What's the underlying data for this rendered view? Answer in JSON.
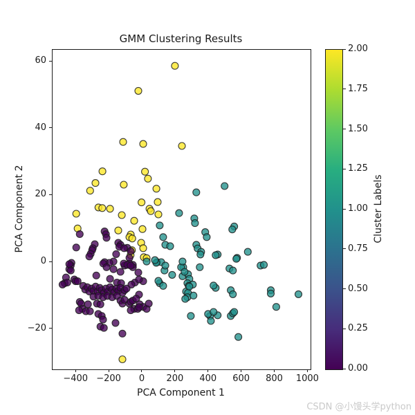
{
  "figure": {
    "watermark": "CSDN @小馒头学python"
  },
  "chart_data": {
    "type": "scatter",
    "title": "GMM Clustering Results",
    "xlabel": "PCA Component 1",
    "ylabel": "PCA Component 2",
    "xlim": [
      -543,
      1015
    ],
    "ylim": [
      -32.1,
      63.6
    ],
    "grid": false,
    "x_ticks": [
      {
        "v": -400,
        "label": "−400"
      },
      {
        "v": -200,
        "label": "−200"
      },
      {
        "v": 0,
        "label": "0"
      },
      {
        "v": 200,
        "label": "200"
      },
      {
        "v": 400,
        "label": "400"
      },
      {
        "v": 600,
        "label": "600"
      },
      {
        "v": 800,
        "label": "800"
      },
      {
        "v": 1000,
        "label": "1000"
      }
    ],
    "y_ticks": [
      {
        "v": -20,
        "label": "−20"
      },
      {
        "v": 0,
        "label": "0"
      },
      {
        "v": 20,
        "label": "20"
      },
      {
        "v": 40,
        "label": "40"
      },
      {
        "v": 60,
        "label": "60"
      }
    ],
    "colorbar": {
      "label": "Cluster Labels",
      "vmin": 0,
      "vmax": 2,
      "colormap": "viridis",
      "gradient_stops": [
        "#440154",
        "#472d7b",
        "#3b528b",
        "#2c728e",
        "#21918c",
        "#28ae80",
        "#5ec962",
        "#addc30",
        "#fde725"
      ],
      "ticks": [
        {
          "v": 0.0,
          "label": "0.00"
        },
        {
          "v": 0.25,
          "label": "0.25"
        },
        {
          "v": 0.5,
          "label": "0.50"
        },
        {
          "v": 0.75,
          "label": "0.75"
        },
        {
          "v": 1.0,
          "label": "1.00"
        },
        {
          "v": 1.25,
          "label": "1.25"
        },
        {
          "v": 1.5,
          "label": "1.50"
        },
        {
          "v": 1.75,
          "label": "1.75"
        },
        {
          "v": 2.0,
          "label": "2.00"
        }
      ]
    },
    "clusters": [
      {
        "id": 0,
        "name": "cluster-0",
        "color": "#440154"
      },
      {
        "id": 1,
        "name": "cluster-1",
        "color": "#21918c"
      },
      {
        "id": 2,
        "name": "cluster-2",
        "color": "#fde725"
      }
    ],
    "marker": {
      "radius_px": 5,
      "alpha": 0.78,
      "edge_color": "#1a1a1a"
    },
    "points": [
      [
        196,
        58.8,
        2
      ],
      [
        -25,
        51.3,
        2
      ],
      [
        -117,
        36.0,
        2
      ],
      [
        4,
        35.4,
        2
      ],
      [
        238,
        34.8,
        2
      ],
      [
        -242,
        27.2,
        2
      ],
      [
        15,
        27.1,
        2
      ],
      [
        33,
        25.0,
        2
      ],
      [
        -284,
        23.7,
        2
      ],
      [
        -113,
        23.2,
        2
      ],
      [
        84,
        22.0,
        2
      ],
      [
        -316,
        21.4,
        2
      ],
      [
        -6,
        17.9,
        2
      ],
      [
        92,
        18.0,
        2
      ],
      [
        -266,
        16.4,
        2
      ],
      [
        -243,
        16.2,
        2
      ],
      [
        -196,
        16.0,
        2
      ],
      [
        42,
        16.0,
        2
      ],
      [
        -400,
        14.5,
        2
      ],
      [
        50,
        15.3,
        2
      ],
      [
        -125,
        14.1,
        2
      ],
      [
        96,
        14.3,
        2
      ],
      [
        -50,
        12.4,
        2
      ],
      [
        -392,
        10.1,
        2
      ],
      [
        0,
        9.9,
        2
      ],
      [
        -146,
        9.5,
        2
      ],
      [
        -71,
        8.3,
        2
      ],
      [
        -79,
        7.5,
        2
      ],
      [
        -62,
        7.1,
        2
      ],
      [
        -8,
        5.8,
        2
      ],
      [
        4,
        4.2,
        2
      ],
      [
        -64,
        3.6,
        2
      ],
      [
        -72,
        2.1,
        2
      ],
      [
        8,
        1.5,
        2
      ],
      [
        25,
        1.2,
        2
      ],
      [
        -121,
        -29.1,
        2
      ],
      [
        496,
        22.8,
        1
      ],
      [
        325,
        20.9,
        1
      ],
      [
        221,
        14.7,
        1
      ],
      [
        313,
        13.1,
        1
      ],
      [
        317,
        11.7,
        1
      ],
      [
        554,
        10.7,
        1
      ],
      [
        542,
        9.8,
        1
      ],
      [
        379,
        9.0,
        1
      ],
      [
        388,
        7.5,
        1
      ],
      [
        104,
        11.0,
        1
      ],
      [
        125,
        7.5,
        1
      ],
      [
        138,
        5.2,
        1
      ],
      [
        167,
        4.8,
        1
      ],
      [
        325,
        5.2,
        1
      ],
      [
        333,
        4.1,
        1
      ],
      [
        354,
        3.1,
        1
      ],
      [
        454,
        2.3,
        1
      ],
      [
        636,
        3.1,
        1
      ],
      [
        571,
        1.3,
        1
      ],
      [
        713,
        -1.0,
        1
      ],
      [
        733,
        -0.8,
        1
      ],
      [
        350,
        2.3,
        1
      ],
      [
        442,
        2.1,
        1
      ],
      [
        567,
        1.0,
        1
      ],
      [
        246,
        -1.5,
        1
      ],
      [
        242,
        -4.2,
        1
      ],
      [
        525,
        -1.9,
        1
      ],
      [
        546,
        -2.5,
        1
      ],
      [
        275,
        -3.6,
        1
      ],
      [
        283,
        -5.0,
        1
      ],
      [
        271,
        -6.3,
        1
      ],
      [
        279,
        -7.1,
        1
      ],
      [
        304,
        -6.7,
        1
      ],
      [
        263,
        -8.8,
        1
      ],
      [
        275,
        -9.2,
        1
      ],
      [
        271,
        -10.5,
        1
      ],
      [
        258,
        -11.0,
        1
      ],
      [
        308,
        -10.0,
        1
      ],
      [
        442,
        -7.7,
        1
      ],
      [
        533,
        -8.4,
        1
      ],
      [
        546,
        -9.6,
        1
      ],
      [
        775,
        -8.4,
        1
      ],
      [
        775,
        -9.4,
        1
      ],
      [
        942,
        -9.6,
        1
      ],
      [
        808,
        -13.4,
        1
      ],
      [
        292,
        -16.1,
        1
      ],
      [
        408,
        -16.1,
        1
      ],
      [
        413,
        -17.6,
        1
      ],
      [
        454,
        -15.9,
        1
      ],
      [
        533,
        -16.1,
        1
      ],
      [
        546,
        -15.3,
        1
      ],
      [
        554,
        -14.9,
        1
      ],
      [
        579,
        -22.4,
        1
      ],
      [
        88,
        0.0,
        1
      ],
      [
        113,
        0.0,
        1
      ],
      [
        25,
        0.2,
        1
      ],
      [
        83,
        -0.2,
        1
      ],
      [
        133,
        -2.5,
        1
      ],
      [
        179,
        -3.8,
        1
      ],
      [
        233,
        -1.5,
        1
      ],
      [
        254,
        -2.9,
        1
      ],
      [
        104,
        -6.3,
        1
      ],
      [
        125,
        -7.1,
        1
      ],
      [
        75,
        0.6,
        1
      ],
      [
        138,
        -1.0,
        1
      ],
      [
        242,
        0.2,
        1
      ],
      [
        346,
        -1.5,
        1
      ],
      [
        96,
        -5.6,
        1
      ],
      [
        283,
        -7.3,
        1
      ],
      [
        429,
        -7.0,
        1
      ],
      [
        396,
        -15.5,
        1
      ],
      [
        429,
        -14.9,
        1
      ],
      [
        -379,
        8.4,
        0
      ],
      [
        -229,
        9.2,
        0
      ],
      [
        -221,
        8.4,
        0
      ],
      [
        -217,
        7.3,
        0
      ],
      [
        -146,
        5.8,
        0
      ],
      [
        -133,
        5.2,
        0
      ],
      [
        -92,
        4.3,
        0
      ],
      [
        -71,
        3.3,
        0
      ],
      [
        -140,
        4.6,
        0
      ],
      [
        -111,
        4.2,
        0
      ],
      [
        -400,
        4.4,
        0
      ],
      [
        -288,
        5.4,
        0
      ],
      [
        -300,
        4.2,
        0
      ],
      [
        -304,
        3.6,
        0
      ],
      [
        -313,
        2.5,
        0
      ],
      [
        -321,
        1.7,
        0
      ],
      [
        -159,
        2.4,
        0
      ],
      [
        -175,
        0.2,
        0
      ],
      [
        -200,
        -0.2,
        0
      ],
      [
        -229,
        0.0,
        0
      ],
      [
        -237,
        -0.4,
        0
      ],
      [
        -79,
        1.3,
        0
      ],
      [
        -58,
        -0.8,
        0
      ],
      [
        -429,
        -0.2,
        0
      ],
      [
        -433,
        -1.0,
        0
      ],
      [
        -442,
        -2.1,
        0
      ],
      [
        -442,
        -0.6,
        0
      ],
      [
        -217,
        -1.5,
        0
      ],
      [
        -175,
        -2.1,
        0
      ],
      [
        -133,
        -2.9,
        0
      ],
      [
        -108,
        -1.0,
        0
      ],
      [
        -79,
        -0.4,
        0
      ],
      [
        -58,
        -1.5,
        0
      ],
      [
        -113,
        -0.4,
        0
      ],
      [
        -92,
        -0.8,
        0
      ],
      [
        -71,
        -1.0,
        0
      ],
      [
        -462,
        -4.6,
        0
      ],
      [
        -470,
        -6.3,
        0
      ],
      [
        -454,
        -6.1,
        0
      ],
      [
        -412,
        -5.2,
        0
      ],
      [
        -404,
        -5.7,
        0
      ],
      [
        -483,
        -6.7,
        0
      ],
      [
        -433,
        -2.5,
        0
      ],
      [
        -392,
        -5.7,
        0
      ],
      [
        -279,
        -4.0,
        0
      ],
      [
        -196,
        -5.0,
        0
      ],
      [
        -154,
        -6.1,
        0
      ],
      [
        -129,
        -6.3,
        0
      ],
      [
        -25,
        -3.1,
        0
      ],
      [
        4,
        -5.7,
        0
      ],
      [
        -46,
        -6.1,
        0
      ],
      [
        -67,
        -6.7,
        0
      ],
      [
        -21,
        -5.2,
        0
      ],
      [
        -358,
        -7.1,
        0
      ],
      [
        -346,
        -8.2,
        0
      ],
      [
        -333,
        -7.5,
        0
      ],
      [
        -321,
        -8.8,
        0
      ],
      [
        -308,
        -7.9,
        0
      ],
      [
        -296,
        -8.6,
        0
      ],
      [
        -283,
        -7.3,
        0
      ],
      [
        -271,
        -8.8,
        0
      ],
      [
        -258,
        -7.7,
        0
      ],
      [
        -246,
        -8.4,
        0
      ],
      [
        -233,
        -9.2,
        0
      ],
      [
        -221,
        -7.9,
        0
      ],
      [
        -208,
        -8.8,
        0
      ],
      [
        -196,
        -7.5,
        0
      ],
      [
        -183,
        -8.2,
        0
      ],
      [
        -171,
        -9.0,
        0
      ],
      [
        -158,
        -7.9,
        0
      ],
      [
        -146,
        -8.6,
        0
      ],
      [
        -133,
        -7.7,
        0
      ],
      [
        -121,
        -9.2,
        0
      ],
      [
        -108,
        -8.4,
        0
      ],
      [
        -96,
        -7.9,
        0
      ],
      [
        -296,
        -10.3,
        0
      ],
      [
        -267,
        -10.1,
        0
      ],
      [
        -238,
        -10.5,
        0
      ],
      [
        -212,
        -10.1,
        0
      ],
      [
        -183,
        -10.5,
        0
      ],
      [
        -154,
        -10.1,
        0
      ],
      [
        -21,
        -9.7,
        0
      ],
      [
        -379,
        -11.9,
        0
      ],
      [
        -371,
        -12.4,
        0
      ],
      [
        -363,
        -14.0,
        0
      ],
      [
        -383,
        -14.4,
        0
      ],
      [
        -342,
        -14.7,
        0
      ],
      [
        -329,
        -12.6,
        0
      ],
      [
        -317,
        -14.7,
        0
      ],
      [
        -275,
        -12.4,
        0
      ],
      [
        -254,
        -12.6,
        0
      ],
      [
        -133,
        -11.5,
        0
      ],
      [
        -121,
        -12.4,
        0
      ],
      [
        -108,
        -11.3,
        0
      ],
      [
        -79,
        -12.4,
        0
      ],
      [
        -71,
        -11.9,
        0
      ],
      [
        -58,
        -11.5,
        0
      ],
      [
        -50,
        -14.0,
        0
      ],
      [
        -38,
        -10.9,
        0
      ],
      [
        -29,
        -14.0,
        0
      ],
      [
        -71,
        -14.4,
        0
      ],
      [
        -17,
        -12.6,
        0
      ],
      [
        4,
        -13.4,
        0
      ],
      [
        25,
        -14.0,
        0
      ],
      [
        38,
        -12.4,
        0
      ],
      [
        -21,
        -13.5,
        0
      ],
      [
        -267,
        -15.5,
        0
      ],
      [
        -246,
        -16.1,
        0
      ],
      [
        -238,
        -17.2,
        0
      ],
      [
        -254,
        -19.3,
        0
      ],
      [
        -233,
        -19.7,
        0
      ],
      [
        -163,
        -18.2,
        0
      ],
      [
        -121,
        -21.4,
        0
      ]
    ]
  }
}
